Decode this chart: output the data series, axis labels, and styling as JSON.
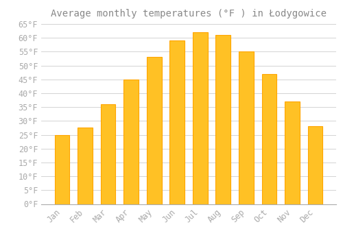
{
  "title": "Average monthly temperatures (°F ) in Łodygowice",
  "months": [
    "Jan",
    "Feb",
    "Mar",
    "Apr",
    "May",
    "Jun",
    "Jul",
    "Aug",
    "Sep",
    "Oct",
    "Nov",
    "Dec"
  ],
  "values": [
    25,
    27.5,
    36,
    45,
    53,
    59,
    62,
    61,
    55,
    47,
    37,
    28
  ],
  "bar_color": "#FFC125",
  "bar_edge_color": "#FFA500",
  "background_color": "#FFFFFF",
  "grid_color": "#CCCCCC",
  "text_color": "#AAAAAA",
  "title_color": "#888888",
  "ylim": [
    0,
    65
  ],
  "yticks": [
    0,
    5,
    10,
    15,
    20,
    25,
    30,
    35,
    40,
    45,
    50,
    55,
    60,
    65
  ],
  "title_fontsize": 10,
  "tick_fontsize": 8.5,
  "bar_width": 0.65
}
